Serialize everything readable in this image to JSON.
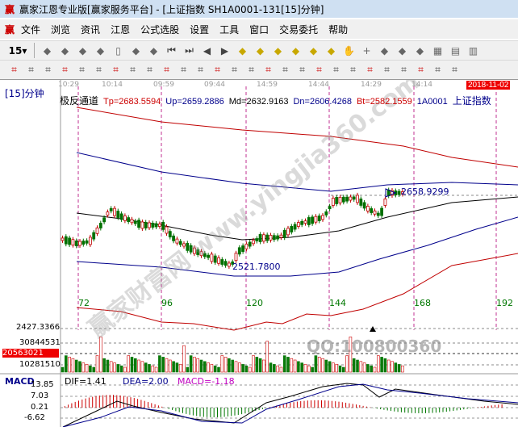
{
  "window": {
    "title": "赢家江恩专业版[赢家服务平台] - [上证指数  SH1A0001-131[15]分钟]",
    "logo": "赢"
  },
  "menu": [
    "文件",
    "浏览",
    "资讯",
    "江恩",
    "公式选股",
    "设置",
    "工具",
    "窗口",
    "交易委托",
    "帮助"
  ],
  "toolbar1": {
    "period": "15▾",
    "icons": [
      "chart-icon",
      "self-select-icon",
      "bars3-icon",
      "bars9-icon",
      "candle-icon",
      "jifan-icon",
      "indicator-icon",
      "first-icon",
      "last-icon",
      "prev-icon",
      "next-icon",
      "left-icon",
      "right-icon",
      "zoom-in-icon",
      "zoom-out-icon",
      "expand-icon",
      "shrink-icon",
      "hand-icon",
      "crosshair-icon",
      "line-icon",
      "jie-icon",
      "num-icon",
      "calendar-icon",
      "calculator-icon",
      "notes-icon"
    ]
  },
  "toolbar2": {
    "icons": [
      "pen-icon",
      "grid-icon",
      "gann1-icon",
      "gann2-icon",
      "fib-icon",
      "spiral-icon",
      "pen2-icon",
      "circle-icon",
      "lines-icon",
      "n2-icon",
      "fan-icon",
      "target-icon",
      "star-icon",
      "box-icon",
      "wave-icon",
      "shen-icon",
      "ying-icon",
      "ruler-icon",
      "width-icon",
      "rect-icon",
      "fan2-icon",
      "square-icon",
      "box2-icon",
      "angle-icon",
      "v-icon",
      "grid2-icon",
      "grid3-icon"
    ]
  },
  "chart": {
    "period_label": "[15]分钟",
    "time_labels": [
      "10:29",
      "10:14",
      "09:59",
      "09:44",
      "14:59",
      "14:44",
      "14:29",
      "14:14"
    ],
    "date_badge": "2018-11-02",
    "indicator": "极反通道",
    "tp": "Tp=2683.5594",
    "up": "Up=2659.2886",
    "md": "Md=2632.9163",
    "dn": "Dn=2606.4268",
    "bt": "Bt=2582.1559",
    "code": "1A0001",
    "name": "上证指数",
    "high_marker": "2658.9299",
    "low_marker": "2521.7800",
    "bar_numbers": [
      "72",
      "96",
      "120",
      "144",
      "168",
      "192"
    ],
    "price_bottom": "2427.3366",
    "volume_labels": [
      "30844531",
      "20563021",
      "10281510"
    ],
    "watermark": "赢家财富网 www.yingjia360.com",
    "qq": "QQ:100800360",
    "macd": {
      "title": "MACD",
      "dif": "DIF=1.41",
      "dea": "DEA=2.00",
      "macd": "MACD=-1.18",
      "ticks": [
        "13.85",
        "7.03",
        "0.21",
        "-6.62"
      ]
    },
    "colors": {
      "up": "#c00000",
      "down": "#007000",
      "channel_red": "#c00000",
      "channel_blue": "#00008b",
      "macd_label": "#c000c0"
    }
  }
}
